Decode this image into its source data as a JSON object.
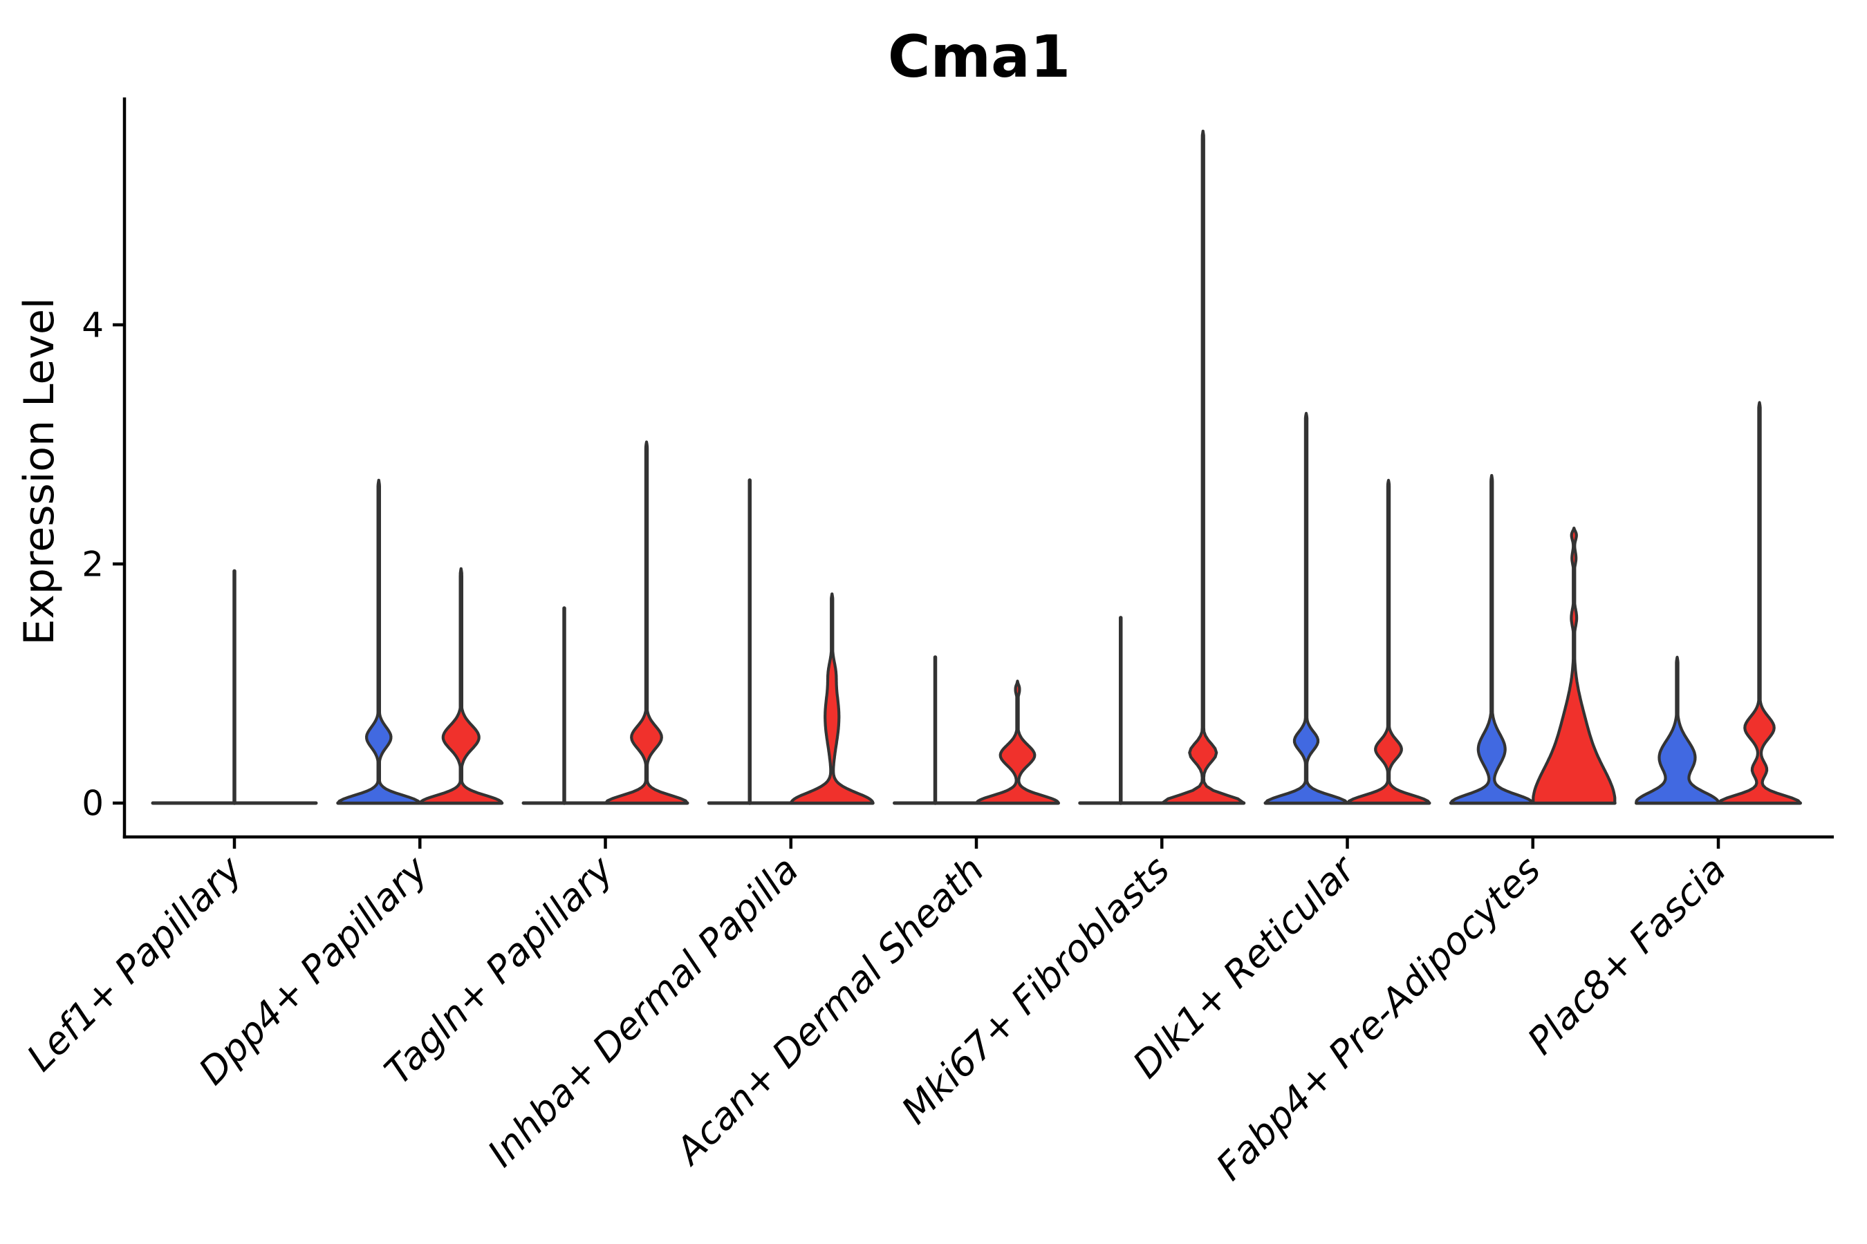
{
  "title": "Cma1",
  "ylabel": "Expression Level",
  "chart_data": {
    "type": "violin",
    "title": "Cma1",
    "ylabel": "Expression Level",
    "xlabel": "",
    "yticks": [
      0,
      2,
      4
    ],
    "ylim": [
      0,
      5.9
    ],
    "grid": false,
    "legend": null,
    "x_tick_rotation_deg": 45,
    "categories": [
      "Lef1+ Papillary",
      "Dpp4+ Papillary",
      "Tagln+ Papillary",
      "Inhba+ Dermal Papilla",
      "Acan+ Dermal Sheath",
      "Mki67+ Fibroblasts",
      "Dlk1+ Reticular",
      "Fabp4+ Pre-Adipocytes",
      "Plac8+ Fascia"
    ],
    "colors": {
      "blue": "#4169E1",
      "red": "#F0312C",
      "outline": "#333333",
      "axis": "#000000",
      "text": "#000000"
    },
    "components_format": "[center_value, spread, relative_halfwidth] gaussian density bumps; empty = flat violin (density collapsed at 0)",
    "groups": [
      {
        "category": "Lef1+ Papillary",
        "violins": [
          {
            "side": "full",
            "color": null,
            "max": 1.94,
            "components": []
          }
        ]
      },
      {
        "category": "Dpp4+ Papillary",
        "violins": [
          {
            "side": "left",
            "color": "blue",
            "max": 2.7,
            "components": [
              [
                0,
                0.09,
                1
              ],
              [
                0.55,
                0.12,
                0.3
              ]
            ]
          },
          {
            "side": "right",
            "color": "red",
            "max": 1.96,
            "components": [
              [
                0,
                0.09,
                1
              ],
              [
                0.55,
                0.14,
                0.44
              ]
            ]
          }
        ]
      },
      {
        "category": "Tagln+ Papillary",
        "violins": [
          {
            "side": "left",
            "color": "blue",
            "max": 1.63,
            "components": []
          },
          {
            "side": "right",
            "color": "red",
            "max": 3.02,
            "components": [
              [
                0,
                0.09,
                1
              ],
              [
                0.55,
                0.13,
                0.37
              ]
            ]
          }
        ]
      },
      {
        "category": "Inhba+ Dermal Papilla",
        "violins": [
          {
            "side": "left",
            "color": "blue",
            "max": 2.7,
            "components": []
          },
          {
            "side": "right",
            "color": "red",
            "max": 1.75,
            "components": [
              [
                0,
                0.12,
                1
              ],
              [
                0.72,
                0.33,
                0.17
              ],
              [
                1.1,
                0.12,
                0.05
              ]
            ]
          }
        ]
      },
      {
        "category": "Acan+ Dermal Sheath",
        "violins": [
          {
            "side": "left",
            "color": "blue",
            "max": 1.22,
            "components": []
          },
          {
            "side": "right",
            "color": "red",
            "max": 1.02,
            "components": [
              [
                0,
                0.09,
                1
              ],
              [
                0.4,
                0.12,
                0.42
              ],
              [
                0.95,
                0.06,
                0.05
              ]
            ]
          }
        ]
      },
      {
        "category": "Mki67+ Fibroblasts",
        "violins": [
          {
            "side": "left",
            "color": "blue",
            "max": 1.55,
            "components": []
          },
          {
            "side": "right",
            "color": "red",
            "max": 5.62,
            "components": [
              [
                0,
                0.09,
                1
              ],
              [
                0.42,
                0.11,
                0.33
              ]
            ]
          }
        ]
      },
      {
        "category": "Dlk1+ Reticular",
        "violins": [
          {
            "side": "left",
            "color": "blue",
            "max": 3.26,
            "components": [
              [
                0,
                0.09,
                1
              ],
              [
                0.52,
                0.11,
                0.29
              ]
            ]
          },
          {
            "side": "right",
            "color": "red",
            "max": 2.7,
            "components": [
              [
                0,
                0.09,
                1
              ],
              [
                0.45,
                0.11,
                0.32
              ]
            ]
          }
        ]
      },
      {
        "category": "Fabp4+ Pre-Adipocytes",
        "violins": [
          {
            "side": "left",
            "color": "blue",
            "max": 2.74,
            "components": [
              [
                0,
                0.1,
                1
              ],
              [
                0.45,
                0.18,
                0.33
              ]
            ]
          },
          {
            "side": "right",
            "color": "red",
            "max": 2.3,
            "components": [
              [
                0,
                0.45,
                1
              ],
              [
                0.65,
                0.35,
                0.2
              ],
              [
                1.55,
                0.1,
                0.065
              ],
              [
                2.05,
                0.08,
                0.05
              ],
              [
                2.24,
                0.06,
                0.06
              ]
            ]
          }
        ]
      },
      {
        "category": "Plac8+ Fascia",
        "violins": [
          {
            "side": "left",
            "color": "blue",
            "max": 1.22,
            "components": [
              [
                0,
                0.13,
                1
              ],
              [
                0.38,
                0.2,
                0.44
              ]
            ]
          },
          {
            "side": "right",
            "color": "red",
            "max": 3.35,
            "components": [
              [
                0,
                0.09,
                1
              ],
              [
                0.28,
                0.09,
                0.18
              ],
              [
                0.63,
                0.13,
                0.36
              ]
            ]
          }
        ]
      }
    ]
  }
}
